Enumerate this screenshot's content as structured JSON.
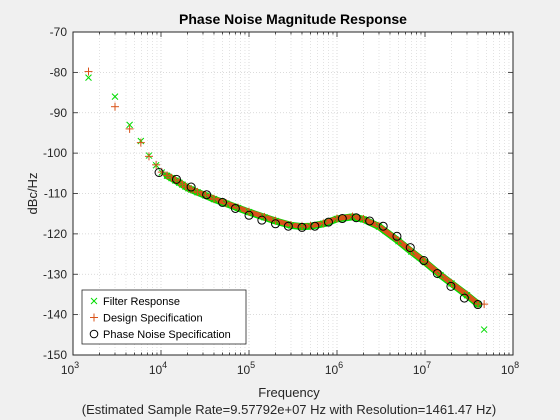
{
  "chart_data": {
    "type": "scatter",
    "title": "Phase Noise Magnitude Response",
    "xlabel": "Frequency",
    "xlabel_note": "(Estimated Sample Rate=9.57792e+07 Hz with Resolution=1461.47 Hz)",
    "ylabel": "dBc/Hz",
    "x_scale": "log",
    "xlim": [
      1000,
      100000000
    ],
    "ylim": [
      -150,
      -70
    ],
    "x_ticks": [
      {
        "value": 1000,
        "base": "10",
        "exp": "3"
      },
      {
        "value": 10000,
        "base": "10",
        "exp": "4"
      },
      {
        "value": 100000,
        "base": "10",
        "exp": "5"
      },
      {
        "value": 1000000,
        "base": "10",
        "exp": "6"
      },
      {
        "value": 10000000,
        "base": "10",
        "exp": "7"
      },
      {
        "value": 100000000,
        "base": "10",
        "exp": "8"
      }
    ],
    "y_ticks": [
      -150,
      -140,
      -130,
      -120,
      -110,
      -100,
      -90,
      -80,
      -70
    ],
    "grid": true,
    "legend_position": "bottom-left",
    "colors": {
      "filter": "#00dd00",
      "design": "#d95319",
      "phase": "#000000",
      "axis": "#262626",
      "grid": "#cfcfcf"
    },
    "series": [
      {
        "name": "Filter Response",
        "marker": "x",
        "x": [
          1500,
          3000,
          4400,
          5900,
          7300,
          8800,
          10200,
          11700,
          13200,
          14600,
          16100,
          17500,
          19000,
          20500,
          22000,
          26000,
          32000,
          40000,
          55000,
          75000,
          100000,
          150000,
          200000,
          300000,
          400000,
          500000,
          700000,
          1000000,
          1500000,
          2000000,
          3000000,
          5000000,
          7000000,
          10000000,
          15000000,
          20000000,
          30000000,
          40000000,
          47000000
        ],
        "values": [
          -81.3,
          -86,
          -93,
          -97,
          -100.6,
          -103,
          -104.8,
          -105.6,
          -106.2,
          -106.8,
          -107.3,
          -107.8,
          -108.3,
          -108.7,
          -109,
          -109.7,
          -110.5,
          -111.4,
          -112.5,
          -113.6,
          -114.6,
          -115.9,
          -116.8,
          -117.9,
          -118.2,
          -118.1,
          -117.5,
          -116.3,
          -115.8,
          -116.4,
          -118.2,
          -121.8,
          -124.4,
          -127,
          -130.2,
          -132.3,
          -135.2,
          -137.4,
          -143.7
        ]
      },
      {
        "name": "Design Specification",
        "marker": "+",
        "x": [
          1500,
          3000,
          4400,
          5900,
          7300,
          8800,
          10200,
          11700,
          13200,
          14600,
          16100,
          17500,
          19000,
          20500,
          22000,
          26000,
          32000,
          40000,
          55000,
          75000,
          100000,
          150000,
          200000,
          300000,
          400000,
          500000,
          700000,
          1000000,
          1500000,
          2000000,
          3000000,
          5000000,
          7000000,
          10000000,
          15000000,
          20000000,
          30000000,
          40000000,
          47000000
        ],
        "values": [
          -79.8,
          -88.5,
          -94,
          -97.4,
          -100.8,
          -102.9,
          -104.7,
          -105.5,
          -106.1,
          -106.7,
          -107.2,
          -107.7,
          -108.2,
          -108.6,
          -108.9,
          -109.6,
          -110.4,
          -111.3,
          -112.4,
          -113.5,
          -114.5,
          -115.8,
          -116.7,
          -117.8,
          -118.1,
          -118,
          -117.4,
          -116.2,
          -115.7,
          -116.3,
          -118.1,
          -121.7,
          -124.3,
          -126.9,
          -130.1,
          -132.2,
          -135.1,
          -137.3,
          -137.4
        ]
      },
      {
        "name": "Phase Noise Specification",
        "marker": "o",
        "x": [
          9500,
          15000,
          22000,
          33000,
          50000,
          70000,
          100000,
          140000,
          200000,
          280000,
          400000,
          560000,
          800000,
          1150000,
          1650000,
          2350000,
          3350000,
          4800000,
          6800000,
          9700000,
          13800000,
          19700000,
          28000000,
          39900000
        ],
        "values": [
          -104.8,
          -106.5,
          -108.4,
          -110.3,
          -112.2,
          -113.7,
          -115.4,
          -116.6,
          -117.5,
          -118.1,
          -118.4,
          -118.1,
          -117.1,
          -116.2,
          -116,
          -116.8,
          -118.1,
          -120.6,
          -123.4,
          -126.6,
          -129.8,
          -133,
          -135.9,
          -137.5
        ]
      }
    ]
  }
}
